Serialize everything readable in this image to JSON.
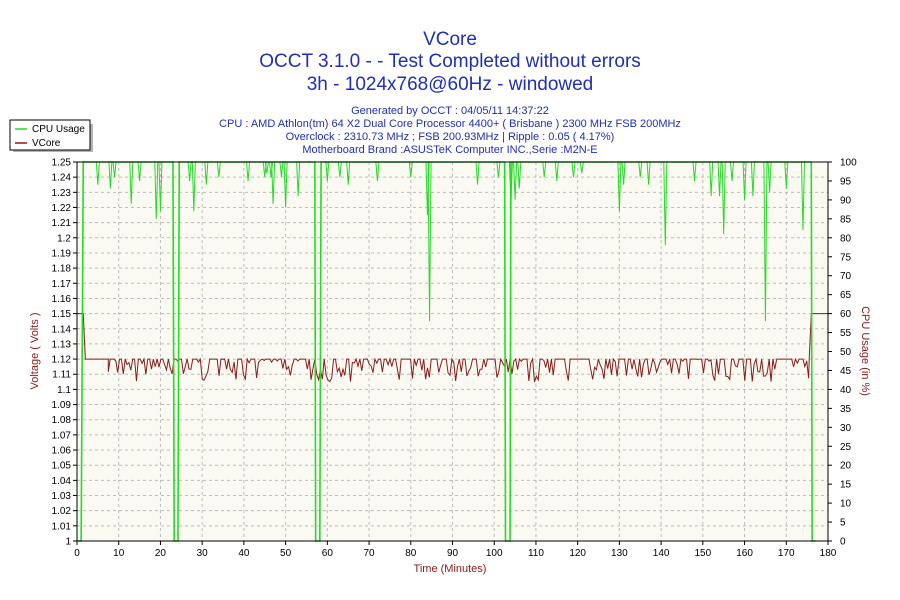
{
  "titles": [
    "VCore",
    "OCCT 3.1.0 -  - Test Completed without errors",
    "3h - 1024x768@60Hz - windowed"
  ],
  "info_lines": [
    "Generated by OCCT : 04/05/11 14:37:22",
    "CPU : AMD Athlon(tm) 64 X2 Dual Core Processor 4400+ ( Brisbane ) 2300 MHz FSB 200MHz",
    "Overclock : 2310.73 MHz ; FSB 200.93MHz | Ripple : 0.05 ( 4.17%)",
    "Motherboard Brand :ASUSTeK Computer INC.,Serie :M2N-E"
  ],
  "colors": {
    "title": "#1f2fb8",
    "cpu_usage": "#22dd22",
    "vcore": "#8b1a1a",
    "grid": "#bdbdbd",
    "plot_bg": "#fafaf2",
    "axis_label": "#8b1a1a"
  },
  "chart_data": {
    "type": "line",
    "xlabel": "Time (Minutes)",
    "ylabel_left": "Voltage ( Volts )",
    "ylabel_right": "CPU Usage (in %)",
    "xlim": [
      0,
      180
    ],
    "ylim_left": [
      1.0,
      1.25
    ],
    "ylim_right": [
      0,
      100
    ],
    "xticks": [
      "0",
      "10",
      "20",
      "30",
      "40",
      "50",
      "60",
      "70",
      "80",
      "90",
      "100",
      "110",
      "120",
      "130",
      "140",
      "150",
      "160",
      "170",
      "180"
    ],
    "yticks_left": [
      "1",
      "1.01",
      "1.02",
      "1.03",
      "1.04",
      "1.05",
      "1.06",
      "1.07",
      "1.08",
      "1.09",
      "1.1",
      "1.11",
      "1.12",
      "1.13",
      "1.14",
      "1.15",
      "1.16",
      "1.17",
      "1.18",
      "1.19",
      "1.2",
      "1.21",
      "1.22",
      "1.23",
      "1.24",
      "1.25"
    ],
    "yticks_right": [
      "0",
      "5",
      "10",
      "15",
      "20",
      "25",
      "30",
      "35",
      "40",
      "45",
      "50",
      "55",
      "60",
      "65",
      "70",
      "75",
      "80",
      "85",
      "90",
      "95",
      "100"
    ],
    "grid": true,
    "legend_position": "top-left",
    "series": [
      {
        "name": "CPU Usage",
        "axis": "right",
        "baseline": 100,
        "points": [
          [
            0,
            0
          ],
          [
            1,
            0
          ],
          [
            1.5,
            100
          ],
          [
            23,
            100
          ],
          [
            23.3,
            0
          ],
          [
            24.2,
            0
          ],
          [
            24.5,
            100
          ],
          [
            57,
            100
          ],
          [
            57.2,
            0
          ],
          [
            58.2,
            0
          ],
          [
            58.5,
            100
          ],
          [
            102.5,
            100
          ],
          [
            102.7,
            0
          ],
          [
            103.8,
            0
          ],
          [
            104,
            100
          ],
          [
            176,
            100
          ],
          [
            176.2,
            0
          ],
          [
            177,
            0
          ]
        ],
        "dips": [
          [
            5,
            94
          ],
          [
            8,
            93
          ],
          [
            9,
            96
          ],
          [
            13,
            89
          ],
          [
            15,
            95
          ],
          [
            19,
            85
          ],
          [
            20,
            87
          ],
          [
            27,
            95
          ],
          [
            28,
            87
          ],
          [
            31,
            94
          ],
          [
            34,
            96
          ],
          [
            41,
            95
          ],
          [
            45,
            96
          ],
          [
            45.5,
            97
          ],
          [
            46.5,
            96
          ],
          [
            47,
            89
          ],
          [
            49,
            96
          ],
          [
            50,
            88
          ],
          [
            53,
            91
          ],
          [
            60,
            95
          ],
          [
            63,
            96
          ],
          [
            65,
            94
          ],
          [
            72,
            95
          ],
          [
            80,
            96
          ],
          [
            84,
            86
          ],
          [
            84.5,
            58
          ],
          [
            96,
            94
          ],
          [
            101,
            96
          ],
          [
            104,
            89
          ],
          [
            105,
            90
          ],
          [
            106,
            93
          ],
          [
            112,
            96
          ],
          [
            115,
            95
          ],
          [
            119,
            96
          ],
          [
            121,
            97
          ],
          [
            130,
            87
          ],
          [
            131,
            94
          ],
          [
            135,
            96
          ],
          [
            137,
            94
          ],
          [
            141,
            78
          ],
          [
            148,
            95
          ],
          [
            152,
            91
          ],
          [
            154,
            91
          ],
          [
            155,
            81
          ],
          [
            157,
            95
          ],
          [
            160,
            90
          ],
          [
            162,
            91
          ],
          [
            165,
            58
          ],
          [
            166,
            92
          ],
          [
            170,
            93
          ],
          [
            174,
            82
          ]
        ]
      },
      {
        "name": "VCore",
        "axis": "left",
        "baseline": 1.12,
        "low": 1.105,
        "points": [
          [
            0,
            1.15
          ],
          [
            1.5,
            1.15
          ],
          [
            2,
            1.12
          ],
          [
            7.5,
            1.12
          ],
          [
            175.5,
            1.12
          ],
          [
            176,
            1.15
          ],
          [
            180,
            1.15
          ]
        ],
        "noise_range": [
          7.5,
          175.5
        ]
      }
    ]
  }
}
